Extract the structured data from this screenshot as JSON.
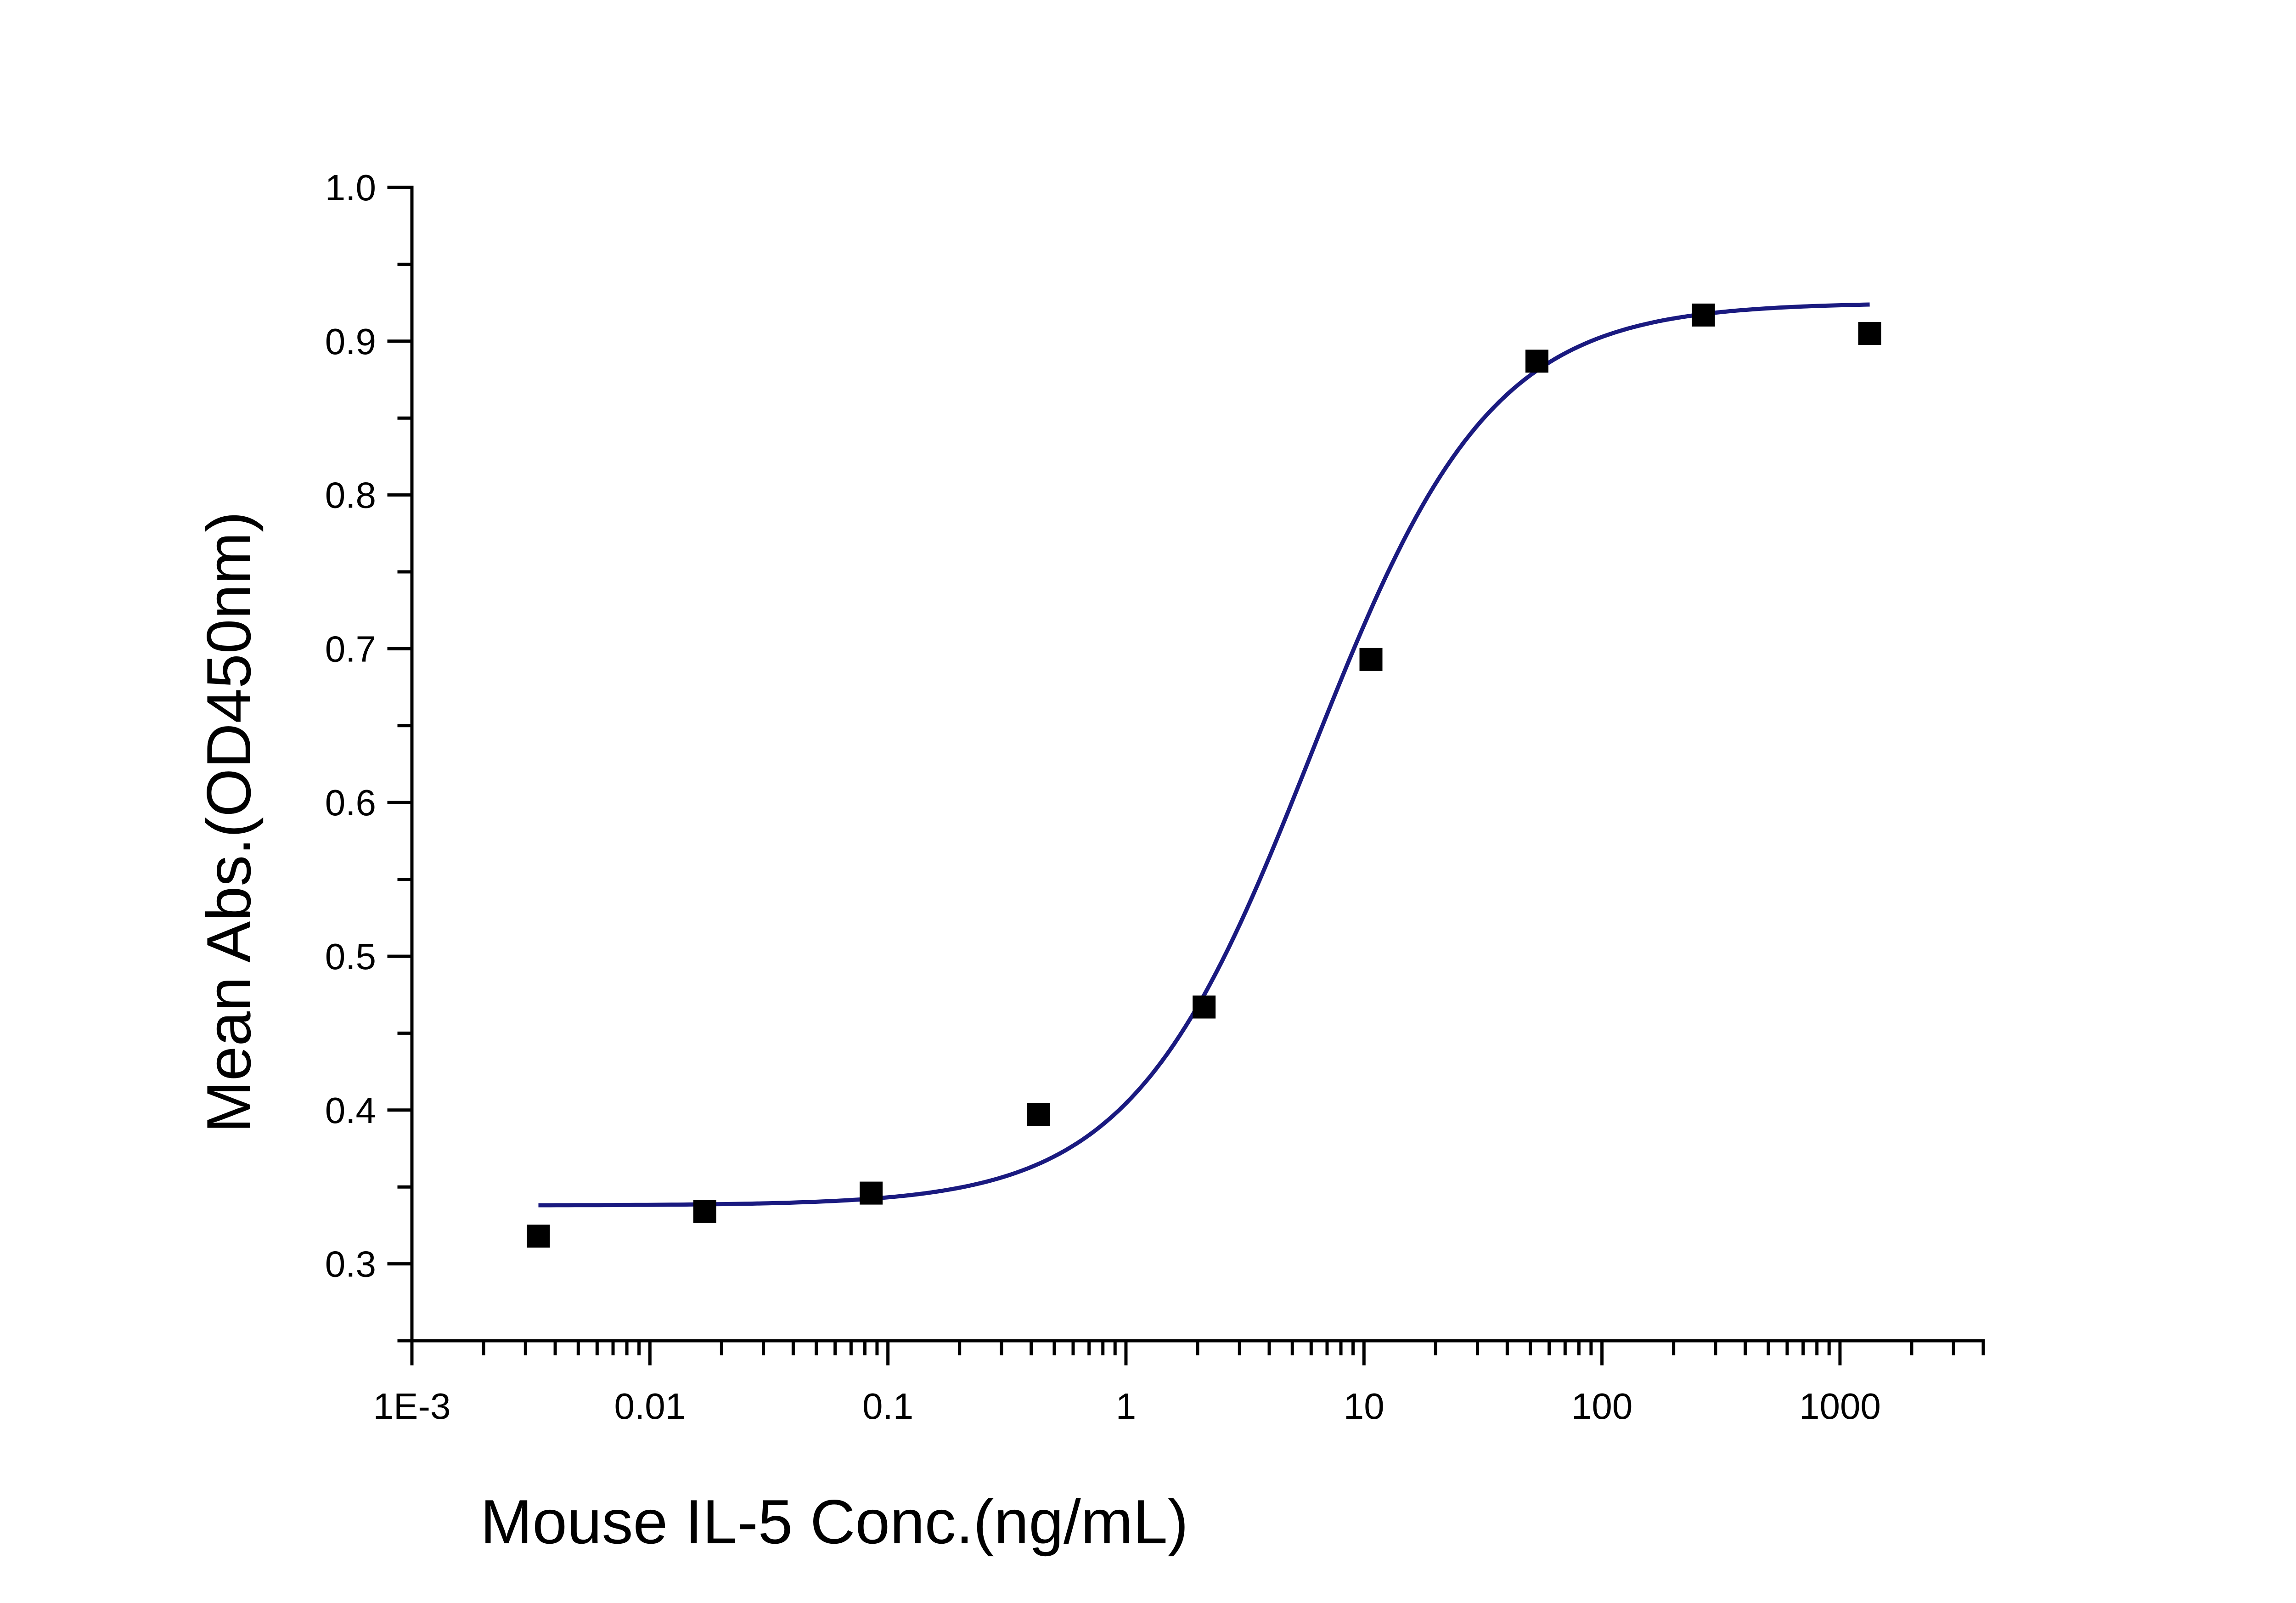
{
  "chart_data": {
    "type": "scatter",
    "title": "",
    "xlabel": "Mouse IL-5 Conc.(ng/mL)",
    "ylabel": "Mean Abs.(OD450nm)",
    "xscale": "log",
    "xlim": [
      0.001,
      4000
    ],
    "ylim": [
      0.25,
      1.0
    ],
    "x_ticks": [
      {
        "value": 0.001,
        "label": "1E-3"
      },
      {
        "value": 0.01,
        "label": "0.01"
      },
      {
        "value": 0.1,
        "label": "0.1"
      },
      {
        "value": 1,
        "label": "1"
      },
      {
        "value": 10,
        "label": "10"
      },
      {
        "value": 100,
        "label": "100"
      },
      {
        "value": 1000,
        "label": "1000"
      }
    ],
    "y_ticks": [
      {
        "value": 0.3,
        "label": "0.3"
      },
      {
        "value": 0.4,
        "label": "0.4"
      },
      {
        "value": 0.5,
        "label": "0.5"
      },
      {
        "value": 0.6,
        "label": "0.6"
      },
      {
        "value": 0.7,
        "label": "0.7"
      },
      {
        "value": 0.8,
        "label": "0.8"
      },
      {
        "value": 0.9,
        "label": "0.9"
      },
      {
        "value": 1.0,
        "label": "1.0"
      }
    ],
    "y_minor_ticks": [
      0.25,
      0.35,
      0.45,
      0.55,
      0.65,
      0.75,
      0.85,
      0.95
    ],
    "grid": false,
    "legend": "none",
    "series": [
      {
        "x": [
          0.0034,
          0.017,
          0.085,
          0.43,
          2.13,
          10.7,
          53.3,
          267,
          1333
        ],
        "y": [
          0.318,
          0.334,
          0.346,
          0.397,
          0.467,
          0.693,
          0.887,
          0.917,
          0.905
        ],
        "color": "#000000",
        "marker": "square"
      }
    ],
    "fit_curve": {
      "type": "four-parameter logistic",
      "bottom": 0.338,
      "top": 0.925,
      "ec50": 6.0,
      "hill": 1.15,
      "x_range": [
        0.0034,
        1333
      ],
      "color": "#1a1a80"
    }
  }
}
